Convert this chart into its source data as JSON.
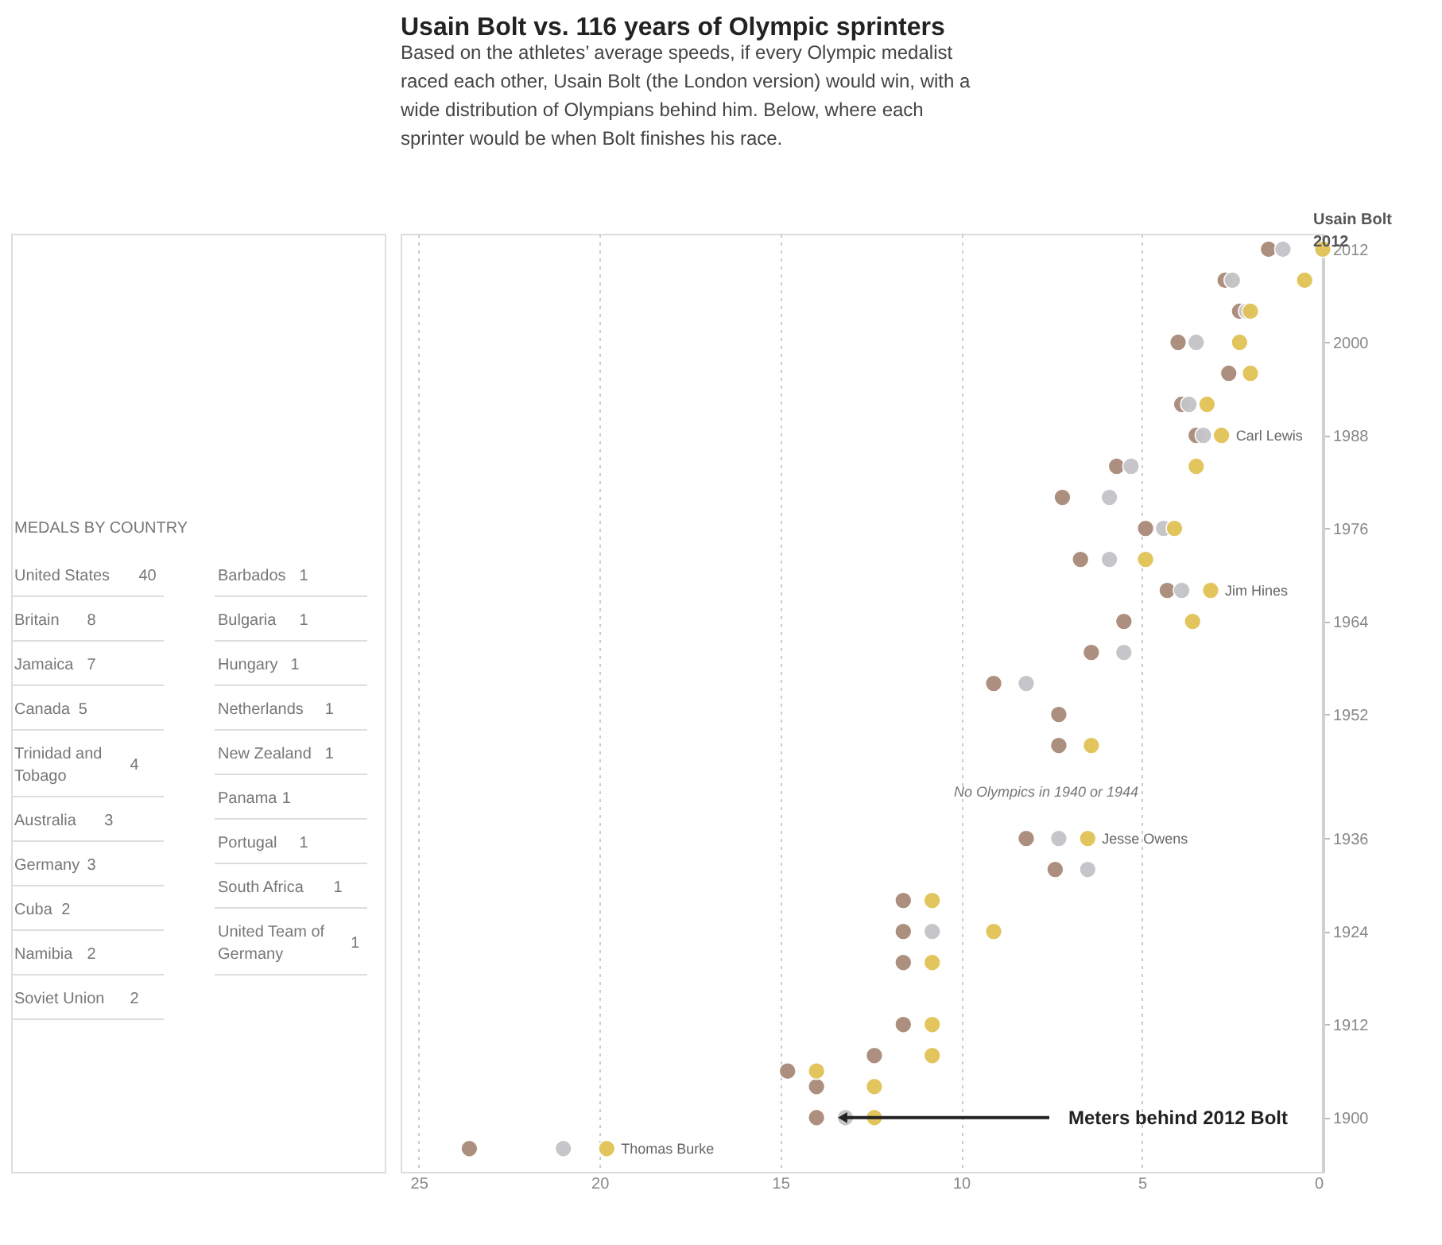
{
  "chart_data": [
    {
      "type": "scatter",
      "title": "Usain Bolt vs. 116 years of Olympic sprinters",
      "subtitle": "Based on the athletes’ average speeds, if every Olympic medalist raced each other, Usain Bolt (the London version) would win, with a wide distribution of Olympians behind him. Below, where each sprinter would be when Bolt finishes his race.",
      "xlabel": "Meters behind 2012 Bolt",
      "xlim": [
        25.5,
        0
      ],
      "xticks": [
        25,
        20,
        15,
        10,
        5,
        0
      ],
      "ylim": [
        1893,
        2014
      ],
      "yticks": [
        1900,
        1912,
        1924,
        1936,
        1952,
        1964,
        1976,
        1988,
        2000,
        2012
      ],
      "grid": "x",
      "marker": "circle",
      "series": [
        {
          "color": "#a88a78",
          "x": [
            1.5,
            2.7,
            2.3,
            4.0,
            2.6,
            3.9,
            3.5,
            5.7,
            7.2,
            4.9,
            6.7,
            4.3,
            5.5,
            6.4,
            9.1,
            7.3,
            7.3,
            8.2,
            7.4,
            11.6,
            11.6,
            11.6,
            11.6,
            12.4,
            14.8,
            14.0,
            14.0,
            23.6
          ],
          "values": [
            2012,
            2008,
            2004,
            2000,
            1996,
            1992,
            1988,
            1984,
            1980,
            1976,
            1972,
            1968,
            1964,
            1960,
            1956,
            1952,
            1948,
            1936,
            1932,
            1928,
            1924,
            1920,
            1912,
            1908,
            1906,
            1904,
            1900,
            1896
          ]
        },
        {
          "color": "#c4c4c8",
          "x": [
            1.1,
            2.5,
            2.1,
            3.5,
            3.7,
            3.3,
            5.3,
            5.9,
            4.4,
            5.9,
            3.9,
            5.5,
            8.2,
            7.3,
            6.5,
            10.8,
            13.2,
            21.0
          ],
          "values": [
            2012,
            2008,
            2004,
            2000,
            1992,
            1988,
            1984,
            1980,
            1976,
            1972,
            1968,
            1960,
            1956,
            1936,
            1932,
            1924,
            1900,
            1896
          ]
        },
        {
          "color": "#e2c256",
          "x": [
            0,
            0.5,
            2.0,
            2.3,
            2.0,
            3.2,
            2.8,
            3.5,
            4.1,
            4.9,
            3.1,
            3.6,
            6.4,
            6.5,
            10.8,
            9.1,
            10.8,
            10.8,
            10.8,
            14.0,
            12.4,
            12.4,
            19.8
          ],
          "values": [
            2012,
            2008,
            2004,
            2000,
            1996,
            1992,
            1988,
            1984,
            1976,
            1972,
            1968,
            1964,
            1948,
            1936,
            1928,
            1924,
            1920,
            1912,
            1908,
            1906,
            1904,
            1900,
            1896
          ]
        }
      ],
      "annotations": [
        "Usain Bolt 2012",
        {
          "text": "Carl Lewis",
          "x": 2.8,
          "y": 1988
        },
        {
          "text": "Jim Hines",
          "x": 3.1,
          "y": 1968
        },
        {
          "text": "Jesse Owens",
          "x": 6.5,
          "y": 1936
        },
        {
          "text": "Thomas Burke",
          "x": 19.8,
          "y": 1896
        },
        "No Olympics in 1940 or 1944"
      ]
    },
    {
      "type": "other",
      "title": "MEDALS BY COUNTRY",
      "categories": [
        "United States",
        "Britain",
        "Jamaica",
        "Canada",
        "Trinidad and Tobago",
        "Australia",
        "Germany",
        "Cuba",
        "Namibia",
        "Soviet Union",
        "Barbados",
        "Bulgaria",
        "Hungary",
        "Netherlands",
        "New Zealand",
        "Panama",
        "Portugal",
        "South Africa",
        "United Team of Germany"
      ],
      "values": [
        40,
        8,
        7,
        5,
        4,
        3,
        3,
        2,
        2,
        2,
        1,
        1,
        1,
        1,
        1,
        1,
        1,
        1,
        1
      ],
      "data_labels": true
    }
  ]
}
